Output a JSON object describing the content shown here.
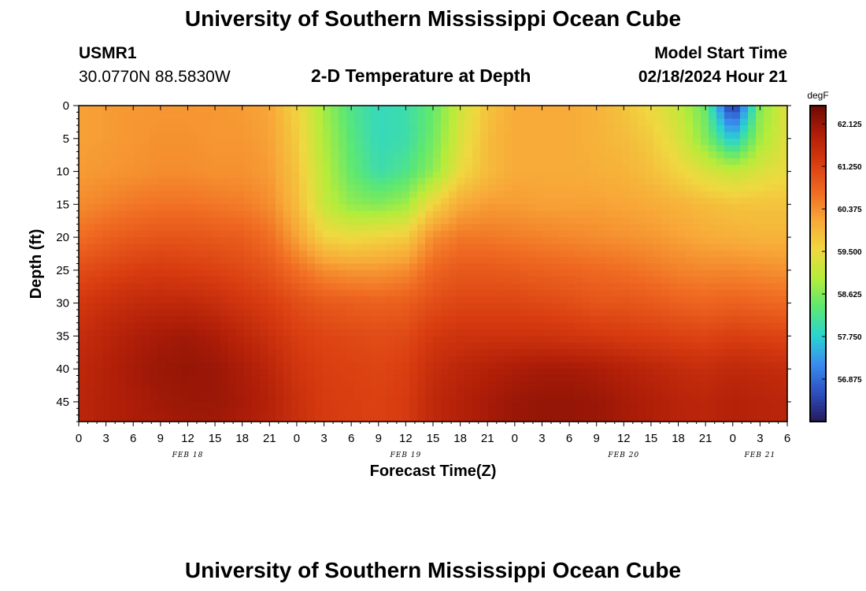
{
  "header": {
    "title": "University of Southern Mississippi Ocean Cube",
    "station": "USMR1",
    "coords": "30.0770N  88.5830W",
    "subtitle": "2-D Temperature at Depth",
    "model_start_label": "Model Start Time",
    "model_start_value": "02/18/2024 Hour 21"
  },
  "footer": {
    "title": "University of Southern Mississippi Ocean Cube"
  },
  "chart_data": {
    "type": "heatmap",
    "title": "2-D Temperature at Depth",
    "xlabel": "Forecast Time(Z)",
    "ylabel": "Depth (ft)",
    "x_hours": [
      0,
      3,
      6,
      9,
      12,
      15,
      18,
      21,
      24,
      27,
      30,
      33,
      36,
      39,
      42,
      45,
      48,
      51,
      54,
      57,
      60,
      63,
      66,
      69,
      72,
      75,
      78
    ],
    "x_tick_labels": [
      "0",
      "3",
      "6",
      "9",
      "12",
      "15",
      "18",
      "21",
      "0",
      "3",
      "6",
      "9",
      "12",
      "15",
      "18",
      "21",
      "0",
      "3",
      "6",
      "9",
      "12",
      "15",
      "18",
      "21",
      "0",
      "3",
      "6"
    ],
    "date_labels": [
      {
        "label": "FEB 18",
        "hour": 12
      },
      {
        "label": "FEB 19",
        "hour": 36
      },
      {
        "label": "FEB 20",
        "hour": 60
      },
      {
        "label": "FEB 21",
        "hour": 75
      }
    ],
    "xlim": [
      0,
      78
    ],
    "y_ticks": [
      0,
      5,
      10,
      15,
      20,
      25,
      30,
      35,
      40,
      45
    ],
    "ylim": [
      0,
      48
    ],
    "y_inverted": true,
    "colorbar": {
      "unit": "degF",
      "range": [
        56,
        62.5
      ],
      "ticks": [
        "62.125",
        "61.250",
        "60.375",
        "59.500",
        "58.625",
        "57.750",
        "56.875"
      ],
      "colors": [
        "#251a5a",
        "#2c4fc0",
        "#3a8df0",
        "#2ad4d0",
        "#5ee870",
        "#b6ec3a",
        "#f0d840",
        "#f8a838",
        "#f06a22",
        "#d83c10",
        "#b01e08",
        "#6e0a04"
      ]
    },
    "depth_rows": [
      0,
      5,
      10,
      15,
      20,
      25,
      30,
      35,
      40,
      45,
      48
    ],
    "values": [
      [
        60.2,
        60.25,
        60.3,
        60.3,
        60.3,
        60.3,
        60.25,
        60.15,
        59.6,
        58.8,
        58.2,
        57.9,
        58.0,
        58.4,
        59.2,
        59.8,
        60.1,
        60.1,
        60.1,
        60.0,
        59.8,
        59.5,
        59.1,
        58.4,
        56.2,
        58.6,
        59.4
      ],
      [
        60.2,
        60.25,
        60.3,
        60.35,
        60.35,
        60.3,
        60.3,
        60.2,
        59.7,
        58.9,
        58.3,
        57.9,
        58.0,
        58.5,
        59.3,
        59.9,
        60.1,
        60.1,
        60.1,
        60.0,
        59.9,
        59.7,
        59.3,
        58.6,
        57.6,
        58.8,
        59.4
      ],
      [
        60.25,
        60.3,
        60.35,
        60.4,
        60.4,
        60.35,
        60.35,
        60.25,
        59.8,
        59.0,
        58.4,
        58.0,
        58.2,
        58.7,
        59.5,
        59.9,
        60.1,
        60.1,
        60.1,
        60.05,
        60.0,
        59.85,
        59.6,
        59.3,
        59.1,
        59.3,
        59.5
      ],
      [
        60.4,
        60.5,
        60.6,
        60.65,
        60.65,
        60.6,
        60.55,
        60.4,
        59.9,
        59.1,
        58.7,
        58.6,
        58.8,
        59.6,
        60.1,
        60.25,
        60.25,
        60.2,
        60.2,
        60.2,
        60.15,
        60.1,
        60.0,
        59.9,
        59.8,
        59.8,
        59.8
      ],
      [
        60.7,
        60.85,
        60.95,
        61.0,
        61.0,
        60.95,
        60.9,
        60.7,
        60.2,
        59.6,
        59.5,
        59.6,
        59.7,
        60.4,
        60.6,
        60.6,
        60.55,
        60.5,
        60.45,
        60.4,
        60.35,
        60.3,
        60.2,
        60.1,
        60.05,
        60.0,
        60.0
      ],
      [
        61.1,
        61.2,
        61.3,
        61.35,
        61.3,
        61.25,
        61.15,
        61.0,
        60.7,
        60.4,
        60.3,
        60.3,
        60.4,
        60.8,
        60.95,
        60.95,
        60.9,
        60.85,
        60.8,
        60.75,
        60.7,
        60.6,
        60.5,
        60.45,
        60.45,
        60.4,
        60.35
      ],
      [
        61.4,
        61.55,
        61.65,
        61.7,
        61.7,
        61.6,
        61.45,
        61.3,
        61.1,
        60.95,
        60.9,
        60.85,
        60.9,
        61.1,
        61.2,
        61.2,
        61.2,
        61.15,
        61.1,
        61.0,
        61.0,
        60.95,
        60.85,
        60.8,
        60.85,
        60.8,
        60.75
      ],
      [
        61.6,
        61.75,
        61.9,
        62.0,
        62.05,
        61.95,
        61.75,
        61.55,
        61.3,
        61.2,
        61.15,
        61.1,
        61.15,
        61.4,
        61.5,
        61.5,
        61.5,
        61.5,
        61.45,
        61.4,
        61.35,
        61.3,
        61.25,
        61.2,
        61.3,
        61.25,
        61.2
      ],
      [
        61.7,
        61.85,
        62.0,
        62.1,
        62.15,
        62.1,
        61.95,
        61.75,
        61.45,
        61.3,
        61.25,
        61.2,
        61.3,
        61.6,
        61.75,
        61.85,
        61.95,
        62.0,
        62.0,
        61.95,
        61.85,
        61.75,
        61.65,
        61.6,
        61.7,
        61.65,
        61.6
      ],
      [
        61.75,
        61.85,
        61.95,
        62.05,
        62.1,
        62.1,
        62.0,
        61.85,
        61.55,
        61.35,
        61.3,
        61.25,
        61.35,
        61.7,
        61.85,
        62.0,
        62.1,
        62.15,
        62.15,
        62.1,
        62.0,
        61.9,
        61.8,
        61.75,
        61.85,
        61.8,
        61.75
      ],
      [
        61.75,
        61.85,
        61.95,
        62.0,
        62.05,
        62.05,
        61.95,
        61.8,
        61.55,
        61.35,
        61.3,
        61.25,
        61.35,
        61.7,
        61.85,
        62.0,
        62.1,
        62.15,
        62.15,
        62.1,
        62.0,
        61.9,
        61.8,
        61.75,
        61.85,
        61.8,
        61.75
      ]
    ]
  }
}
